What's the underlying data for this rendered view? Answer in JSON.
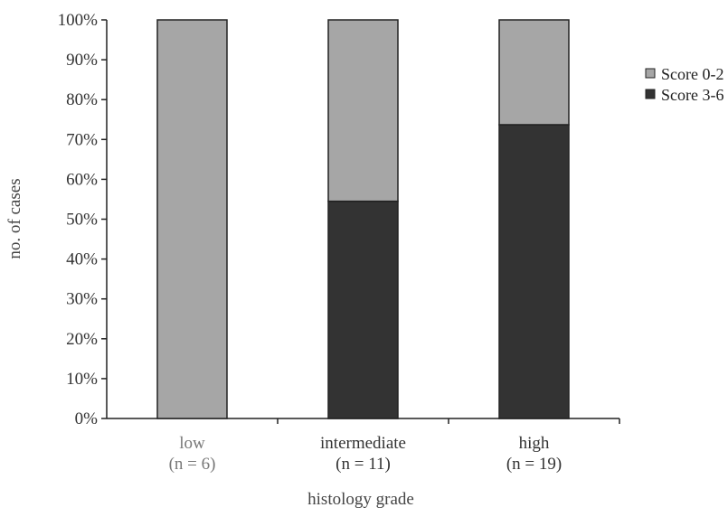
{
  "chart_data": {
    "type": "bar",
    "stacked": true,
    "categories": [
      "low",
      "intermediate",
      "high"
    ],
    "category_sublabels": [
      "(n = 6)",
      "(n = 11)",
      "(n = 19)"
    ],
    "series": [
      {
        "name": "Score 3-6",
        "values": [
          0,
          54.5,
          73.7
        ],
        "color": "#333333"
      },
      {
        "name": "Score 0-2",
        "values": [
          100,
          45.5,
          26.3
        ],
        "color": "#a6a6a6"
      }
    ],
    "yticks": [
      "0%",
      "10%",
      "20%",
      "30%",
      "40%",
      "50%",
      "60%",
      "70%",
      "80%",
      "90%",
      "100%"
    ],
    "ylim": [
      0,
      100
    ],
    "xlabel": "histology grade",
    "ylabel": "no. of cases",
    "legend_position": "right",
    "grid": false
  }
}
